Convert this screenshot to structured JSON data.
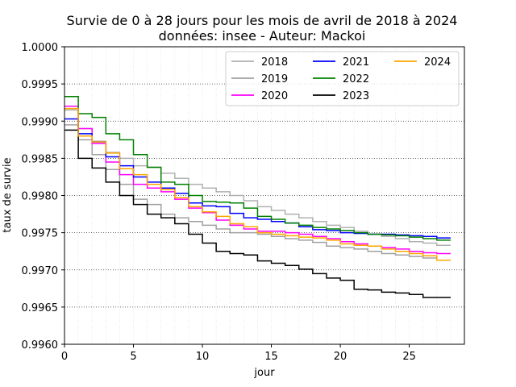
{
  "chart_data": {
    "type": "line",
    "step": true,
    "title": "Survie de 0 à 28 jours pour les mois de avril de 2018 à 2024",
    "subtitle": "données: insee - Auteur: Mackoi",
    "xlabel": "jour",
    "ylabel": "taux de survie",
    "xlim": [
      0,
      29
    ],
    "ylim": [
      0.996,
      1.0
    ],
    "xticks": [
      0,
      5,
      10,
      15,
      20,
      25
    ],
    "xtick_labels": [
      "0",
      "5",
      "10",
      "15",
      "20",
      "25"
    ],
    "yticks": [
      0.996,
      0.9965,
      0.997,
      0.9975,
      0.998,
      0.9985,
      0.999,
      0.9995,
      1.0
    ],
    "ytick_labels": [
      "0.9960",
      "0.9965",
      "0.9970",
      "0.9975",
      "0.9980",
      "0.9985",
      "0.9990",
      "0.9995",
      "1.0000"
    ],
    "grid": {
      "horizontal_major": true,
      "vertical_minor": true,
      "style": "dotted"
    },
    "legend": {
      "position": "top-right",
      "columns": 3
    },
    "x": [
      0,
      1,
      2,
      3,
      4,
      5,
      6,
      7,
      8,
      9,
      10,
      11,
      12,
      13,
      14,
      15,
      16,
      17,
      18,
      19,
      20,
      21,
      22,
      23,
      24,
      25,
      26,
      27,
      28
    ],
    "series": [
      {
        "name": "2018",
        "color": "#b0b0b0",
        "values": [
          0.99915,
          0.9989,
          0.99873,
          0.99858,
          0.9985,
          0.9984,
          0.99838,
          0.9983,
          0.99823,
          0.99815,
          0.9981,
          0.99805,
          0.998,
          0.99793,
          0.99785,
          0.9978,
          0.99775,
          0.9977,
          0.99765,
          0.9976,
          0.99757,
          0.99752,
          0.99748,
          0.99745,
          0.99742,
          0.99738,
          0.99736,
          0.99733,
          0.99733
        ]
      },
      {
        "name": "2019",
        "color": "#a0a0a0",
        "values": [
          0.99895,
          0.99875,
          0.99855,
          0.99835,
          0.99815,
          0.99795,
          0.99788,
          0.99775,
          0.9977,
          0.99765,
          0.9976,
          0.99755,
          0.9975,
          0.9975,
          0.99748,
          0.99745,
          0.99742,
          0.9974,
          0.99737,
          0.99732,
          0.9973,
          0.99728,
          0.99725,
          0.99722,
          0.9972,
          0.99718,
          0.99716,
          0.99713,
          0.99713
        ]
      },
      {
        "name": "2020",
        "color": "#ff00ff",
        "values": [
          0.9992,
          0.9989,
          0.9987,
          0.99845,
          0.99828,
          0.99815,
          0.9981,
          0.99805,
          0.99795,
          0.99783,
          0.99777,
          0.99767,
          0.9976,
          0.99755,
          0.99752,
          0.99752,
          0.9975,
          0.99748,
          0.99745,
          0.99742,
          0.99738,
          0.99735,
          0.99732,
          0.9973,
          0.99728,
          0.99725,
          0.99723,
          0.99722,
          0.99722
        ]
      },
      {
        "name": "2021",
        "color": "#0000ff",
        "values": [
          0.99903,
          0.99883,
          0.99872,
          0.99852,
          0.9984,
          0.99825,
          0.99818,
          0.9981,
          0.99803,
          0.9979,
          0.99786,
          0.99785,
          0.99776,
          0.9977,
          0.99768,
          0.99765,
          0.99763,
          0.99758,
          0.99754,
          0.99753,
          0.9975,
          0.99749,
          0.99748,
          0.99748,
          0.99747,
          0.99746,
          0.99745,
          0.99743,
          0.99743
        ]
      },
      {
        "name": "2022",
        "color": "#008000",
        "values": [
          0.99933,
          0.9991,
          0.99905,
          0.99883,
          0.99875,
          0.99855,
          0.99838,
          0.99818,
          0.99815,
          0.998,
          0.99792,
          0.99791,
          0.9979,
          0.99783,
          0.99772,
          0.99768,
          0.99763,
          0.9976,
          0.99757,
          0.99755,
          0.99753,
          0.9975,
          0.99748,
          0.99747,
          0.99746,
          0.99744,
          0.99742,
          0.9974,
          0.9974
        ]
      },
      {
        "name": "2023",
        "color": "#000000",
        "values": [
          0.99888,
          0.9985,
          0.99837,
          0.99818,
          0.998,
          0.99788,
          0.99775,
          0.9977,
          0.99762,
          0.99748,
          0.99736,
          0.99725,
          0.99722,
          0.9972,
          0.99712,
          0.99709,
          0.99706,
          0.99701,
          0.99695,
          0.99689,
          0.99686,
          0.99674,
          0.99673,
          0.9967,
          0.99669,
          0.99667,
          0.99663,
          0.99663,
          0.99663
        ]
      },
      {
        "name": "2024",
        "color": "#ffa500",
        "values": [
          0.99917,
          0.9988,
          0.99872,
          0.99857,
          0.99836,
          0.99828,
          0.99815,
          0.99808,
          0.99797,
          0.99785,
          0.99778,
          0.99772,
          0.99762,
          0.99758,
          0.9975,
          0.99748,
          0.99746,
          0.99744,
          0.99743,
          0.9974,
          0.99735,
          0.99733,
          0.99732,
          0.99728,
          0.99725,
          0.99722,
          0.99719,
          0.99713,
          0.99713
        ]
      }
    ]
  }
}
